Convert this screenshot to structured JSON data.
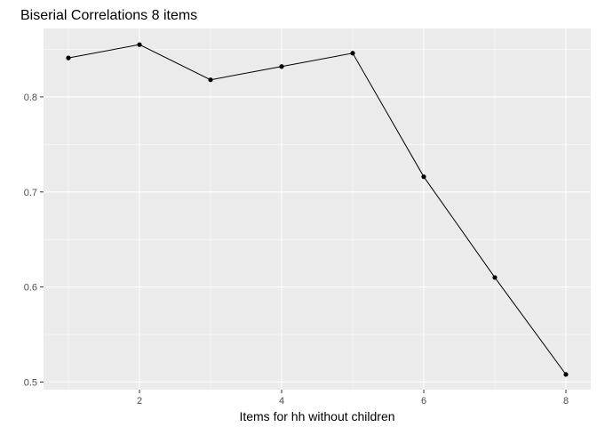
{
  "chart_data": {
    "type": "line",
    "title": "Biserial Correlations 8 items",
    "xlabel": "Items for hh without children",
    "ylabel": "",
    "x": [
      1,
      2,
      3,
      4,
      5,
      6,
      7,
      8
    ],
    "series": [
      {
        "values": [
          0.841,
          0.855,
          0.818,
          0.832,
          0.846,
          0.716,
          0.61,
          0.508
        ]
      }
    ],
    "xlim": [
      0.65,
      8.35
    ],
    "ylim": [
      0.492,
      0.872
    ],
    "x_ticks": [
      2,
      4,
      6,
      8
    ],
    "x_tick_labels": [
      "2",
      "4",
      "6",
      "8"
    ],
    "y_ticks": [
      0.5,
      0.6,
      0.7,
      0.8
    ],
    "y_tick_labels": [
      "0.5",
      "0.6",
      "0.7",
      "0.8"
    ],
    "grid": true,
    "legend": "none",
    "colors": {
      "panel_background": "#ebebeb",
      "grid_major": "#ffffff",
      "line": "#000000",
      "point": "#000000",
      "tick_label": "#4d4d4d",
      "tick_mark": "#333333"
    }
  }
}
